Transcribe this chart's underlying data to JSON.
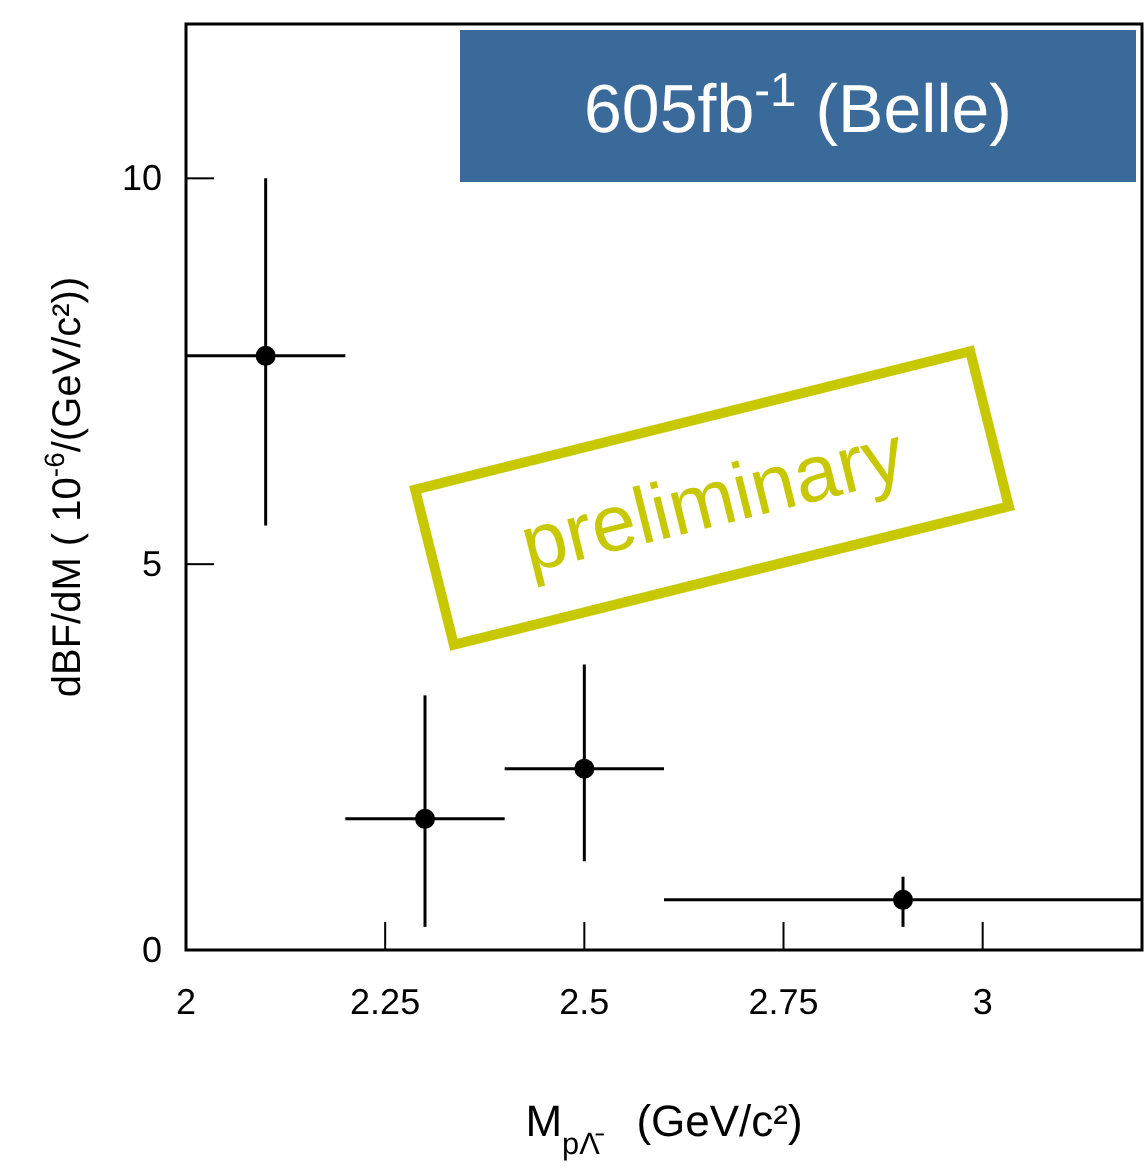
{
  "chart_data": {
    "type": "scatter",
    "xlabel": "M$_{pΛ̄}$   (GeV/c²)",
    "ylabel": "dBF/dM ( 10$^{-6}$/(GeV/c²))",
    "x": [
      2.1,
      2.3,
      2.5,
      2.9
    ],
    "values": [
      7.7,
      1.7,
      2.35,
      0.65
    ],
    "errors": [
      [
        5.5,
        10.0
      ],
      [
        0.3,
        3.3
      ],
      [
        1.15,
        3.7
      ],
      [
        0.3,
        0.95
      ]
    ],
    "xerrors": [
      [
        2.0,
        2.2
      ],
      [
        2.2,
        2.4
      ],
      [
        2.4,
        2.6
      ],
      [
        2.6,
        3.2
      ]
    ],
    "color": "#000000",
    "marker": "circle",
    "xlim": [
      2,
      3.2
    ],
    "xticks": [
      2,
      2.25,
      2.5,
      2.75,
      3
    ],
    "ylim": [
      0,
      12
    ],
    "yticks": [
      0,
      5,
      10
    ],
    "grid": false,
    "annotations": [
      "605fb$^{-1}$ (Belle)",
      "preliminary"
    ]
  }
}
